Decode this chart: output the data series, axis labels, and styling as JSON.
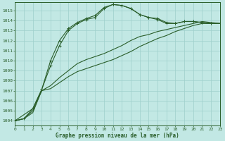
{
  "title": "Graphe pression niveau de la mer (hPa)",
  "bg_color": "#c2e8e4",
  "grid_color": "#9ecfcb",
  "line_color": "#2a5e2a",
  "xlim": [
    0,
    23
  ],
  "ylim": [
    1003.5,
    1015.8
  ],
  "xticks": [
    0,
    1,
    2,
    3,
    4,
    5,
    6,
    7,
    8,
    9,
    10,
    11,
    12,
    13,
    14,
    15,
    16,
    17,
    18,
    19,
    20,
    21,
    22,
    23
  ],
  "yticks": [
    1004,
    1005,
    1006,
    1007,
    1008,
    1009,
    1010,
    1011,
    1012,
    1013,
    1014,
    1015
  ],
  "series_marked_1": {
    "x": [
      0,
      1,
      2,
      3,
      4,
      5,
      6,
      7,
      8,
      9,
      10,
      11,
      12,
      13,
      14,
      15,
      16,
      17,
      18,
      19,
      20,
      21,
      22,
      23
    ],
    "y": [
      1004.0,
      1004.2,
      1005.2,
      1007.1,
      1009.5,
      1011.5,
      1013.0,
      1013.7,
      1014.1,
      1014.3,
      1015.2,
      1015.6,
      1015.5,
      1015.2,
      1014.6,
      1014.3,
      1014.1,
      1013.7,
      1013.7,
      1013.9,
      1013.9,
      1013.8,
      1013.7,
      1013.7
    ]
  },
  "series_marked_2": {
    "x": [
      0,
      2,
      3,
      4,
      5,
      6,
      7,
      8,
      9,
      10,
      11,
      12,
      13,
      14,
      15,
      16,
      17,
      18,
      19,
      20,
      21,
      22,
      23
    ],
    "y": [
      1004.0,
      1005.2,
      1007.1,
      1010.0,
      1012.0,
      1013.2,
      1013.8,
      1014.2,
      1014.5,
      1015.3,
      1015.6,
      1015.5,
      1015.2,
      1014.6,
      1014.3,
      1014.2,
      1013.8,
      1013.7,
      1013.9,
      1013.9,
      1013.8,
      1013.7,
      1013.7
    ]
  },
  "series_plain_1": {
    "x": [
      0,
      1,
      2,
      3,
      4,
      5,
      6,
      7,
      8,
      9,
      10,
      11,
      12,
      13,
      14,
      15,
      16,
      17,
      18,
      19,
      20,
      21,
      22,
      23
    ],
    "y": [
      1004.0,
      1004.2,
      1005.0,
      1007.0,
      1007.5,
      1008.3,
      1009.0,
      1009.7,
      1010.1,
      1010.4,
      1010.7,
      1011.1,
      1011.5,
      1012.0,
      1012.4,
      1012.6,
      1012.9,
      1013.1,
      1013.3,
      1013.5,
      1013.7,
      1013.9,
      1013.8,
      1013.7
    ]
  },
  "series_plain_2": {
    "x": [
      0,
      1,
      2,
      3,
      4,
      5,
      6,
      7,
      8,
      9,
      10,
      11,
      12,
      13,
      14,
      15,
      16,
      17,
      18,
      19,
      20,
      21,
      22,
      23
    ],
    "y": [
      1004.0,
      1004.2,
      1004.8,
      1007.0,
      1007.2,
      1007.8,
      1008.4,
      1008.9,
      1009.2,
      1009.5,
      1009.8,
      1010.1,
      1010.5,
      1010.9,
      1011.4,
      1011.8,
      1012.2,
      1012.5,
      1012.9,
      1013.2,
      1013.5,
      1013.7,
      1013.7,
      1013.7
    ]
  }
}
